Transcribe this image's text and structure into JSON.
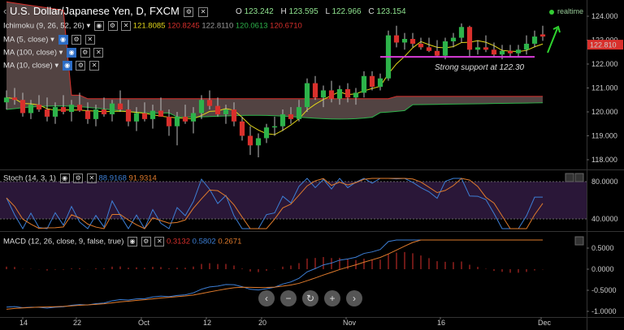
{
  "header": {
    "symbol": "U.S. Dollar/Japanese Yen, D, FXCM",
    "ohlc": [
      {
        "k": "O",
        "v": "123.242"
      },
      {
        "k": "H",
        "v": "123.595"
      },
      {
        "k": "L",
        "v": "122.966"
      },
      {
        "k": "C",
        "v": "123.154"
      }
    ],
    "realtime": "realtime"
  },
  "indicators": {
    "ichimoku": {
      "label": "Ichimoku (9, 26, 52, 26)",
      "v1": "121.8085",
      "v2": "120.8245",
      "v3": "122.8110",
      "v4": "120.0613",
      "v5": "120.6710"
    },
    "ma5": {
      "label": "MA (5, close)"
    },
    "ma100": {
      "label": "MA (100, close)"
    },
    "ma10": {
      "label": "MA (10, close)"
    }
  },
  "stoch": {
    "label": "Stoch (14, 3, 1)",
    "k": "88.9168",
    "d": "91.9314"
  },
  "macd": {
    "label": "MACD (12, 26, close, 9, false, true)",
    "hist": "0.3132",
    "macd": "0.5802",
    "signal": "0.2671"
  },
  "annotation": "Strong support at 122.30",
  "last_price": "122.810",
  "colors": {
    "up": "#2db34a",
    "down": "#d9302c",
    "cloud": "#6e5a58",
    "ma": "#e4d81a",
    "stoch_k": "#3d7fd6",
    "stoch_d": "#e07b2c",
    "macd": "#3d7fd6",
    "signal": "#e07b2c",
    "hist": "#d9302c",
    "support": "#d93cd9",
    "arrow": "#2fd42f"
  },
  "chart_data": {
    "type": "candlestick",
    "y_ticks": [
      "124.000",
      "123.000",
      "122.000",
      "121.000",
      "120.000",
      "119.000",
      "118.000"
    ],
    "stoch_ticks": [
      "80.0000",
      "40.0000"
    ],
    "macd_ticks": [
      "0.5000",
      "0.0000",
      "-0.5000",
      "-1.0000"
    ],
    "x_ticks": [
      "14",
      "22",
      "Oct",
      "12",
      "20",
      "Nov",
      "16",
      "Dec"
    ],
    "ylim": [
      117.8,
      124.5
    ],
    "support_level": 122.3,
    "candles": [
      [
        120.4,
        120.9,
        120.1,
        120.6
      ],
      [
        120.6,
        121.0,
        120.3,
        120.5
      ],
      [
        120.5,
        120.8,
        119.8,
        119.95
      ],
      [
        119.95,
        120.5,
        119.7,
        120.3
      ],
      [
        120.3,
        120.7,
        120.0,
        120.1
      ],
      [
        120.1,
        120.6,
        119.6,
        119.8
      ],
      [
        119.8,
        120.4,
        119.5,
        120.2
      ],
      [
        120.2,
        120.7,
        119.9,
        120.0
      ],
      [
        120.0,
        120.5,
        119.6,
        120.3
      ],
      [
        120.3,
        120.8,
        120.0,
        120.05
      ],
      [
        120.05,
        120.4,
        119.5,
        119.7
      ],
      [
        119.7,
        120.3,
        119.4,
        120.1
      ],
      [
        120.1,
        120.6,
        119.8,
        119.9
      ],
      [
        119.9,
        120.5,
        119.6,
        120.35
      ],
      [
        120.35,
        120.9,
        120.0,
        120.1
      ],
      [
        120.1,
        120.5,
        119.4,
        119.6
      ],
      [
        119.6,
        120.2,
        119.2,
        119.95
      ],
      [
        119.95,
        120.4,
        119.6,
        119.7
      ],
      [
        119.7,
        120.3,
        119.3,
        120.05
      ],
      [
        120.05,
        120.6,
        119.8,
        119.8
      ],
      [
        119.8,
        120.1,
        119.0,
        119.4
      ],
      [
        119.4,
        120.0,
        118.6,
        119.8
      ],
      [
        119.8,
        120.3,
        119.5,
        119.6
      ],
      [
        119.6,
        120.2,
        119.1,
        119.95
      ],
      [
        119.95,
        120.7,
        119.7,
        120.5
      ],
      [
        120.5,
        120.9,
        120.1,
        120.25
      ],
      [
        120.25,
        120.6,
        119.8,
        119.9
      ],
      [
        119.9,
        120.3,
        119.5,
        120.1
      ],
      [
        120.1,
        120.4,
        119.4,
        119.6
      ],
      [
        119.6,
        119.8,
        118.8,
        119.0
      ],
      [
        119.0,
        119.4,
        118.2,
        118.6
      ],
      [
        118.6,
        119.1,
        118.1,
        118.9
      ],
      [
        118.9,
        119.5,
        118.7,
        119.35
      ],
      [
        119.35,
        119.8,
        119.0,
        119.4
      ],
      [
        119.4,
        120.1,
        119.2,
        119.9
      ],
      [
        119.9,
        120.2,
        119.5,
        119.7
      ],
      [
        119.7,
        120.5,
        119.6,
        120.2
      ],
      [
        120.2,
        121.4,
        120.0,
        121.2
      ],
      [
        121.2,
        121.5,
        120.5,
        120.6
      ],
      [
        120.6,
        121.1,
        120.2,
        120.9
      ],
      [
        120.9,
        121.3,
        120.4,
        120.55
      ],
      [
        120.55,
        121.1,
        120.3,
        120.95
      ],
      [
        120.95,
        121.2,
        120.4,
        120.6
      ],
      [
        120.6,
        121.0,
        120.3,
        120.8
      ],
      [
        120.8,
        121.7,
        120.6,
        121.5
      ],
      [
        121.5,
        121.7,
        120.9,
        121.05
      ],
      [
        121.05,
        121.6,
        120.9,
        121.4
      ],
      [
        121.4,
        123.4,
        121.3,
        123.2
      ],
      [
        123.2,
        123.6,
        122.7,
        122.9
      ],
      [
        122.9,
        123.3,
        122.6,
        123.05
      ],
      [
        123.05,
        123.3,
        122.7,
        122.85
      ],
      [
        122.85,
        123.1,
        122.6,
        122.7
      ],
      [
        122.7,
        123.1,
        122.5,
        122.55
      ],
      [
        122.55,
        123.0,
        122.3,
        122.35
      ],
      [
        122.35,
        123.1,
        122.2,
        122.95
      ],
      [
        122.95,
        123.3,
        122.7,
        123.1
      ],
      [
        123.1,
        123.7,
        122.9,
        123.55
      ],
      [
        123.55,
        123.6,
        122.3,
        122.6
      ],
      [
        122.6,
        123.0,
        122.4,
        122.7
      ],
      [
        122.7,
        123.2,
        122.5,
        122.6
      ],
      [
        122.6,
        122.9,
        122.3,
        122.4
      ],
      [
        122.4,
        122.8,
        122.2,
        122.55
      ],
      [
        122.55,
        122.8,
        122.3,
        122.45
      ],
      [
        122.45,
        122.8,
        122.3,
        122.6
      ],
      [
        122.6,
        123.2,
        122.4,
        122.85
      ],
      [
        122.85,
        123.4,
        122.7,
        123.15
      ],
      [
        123.24,
        123.6,
        122.97,
        123.15
      ]
    ]
  }
}
